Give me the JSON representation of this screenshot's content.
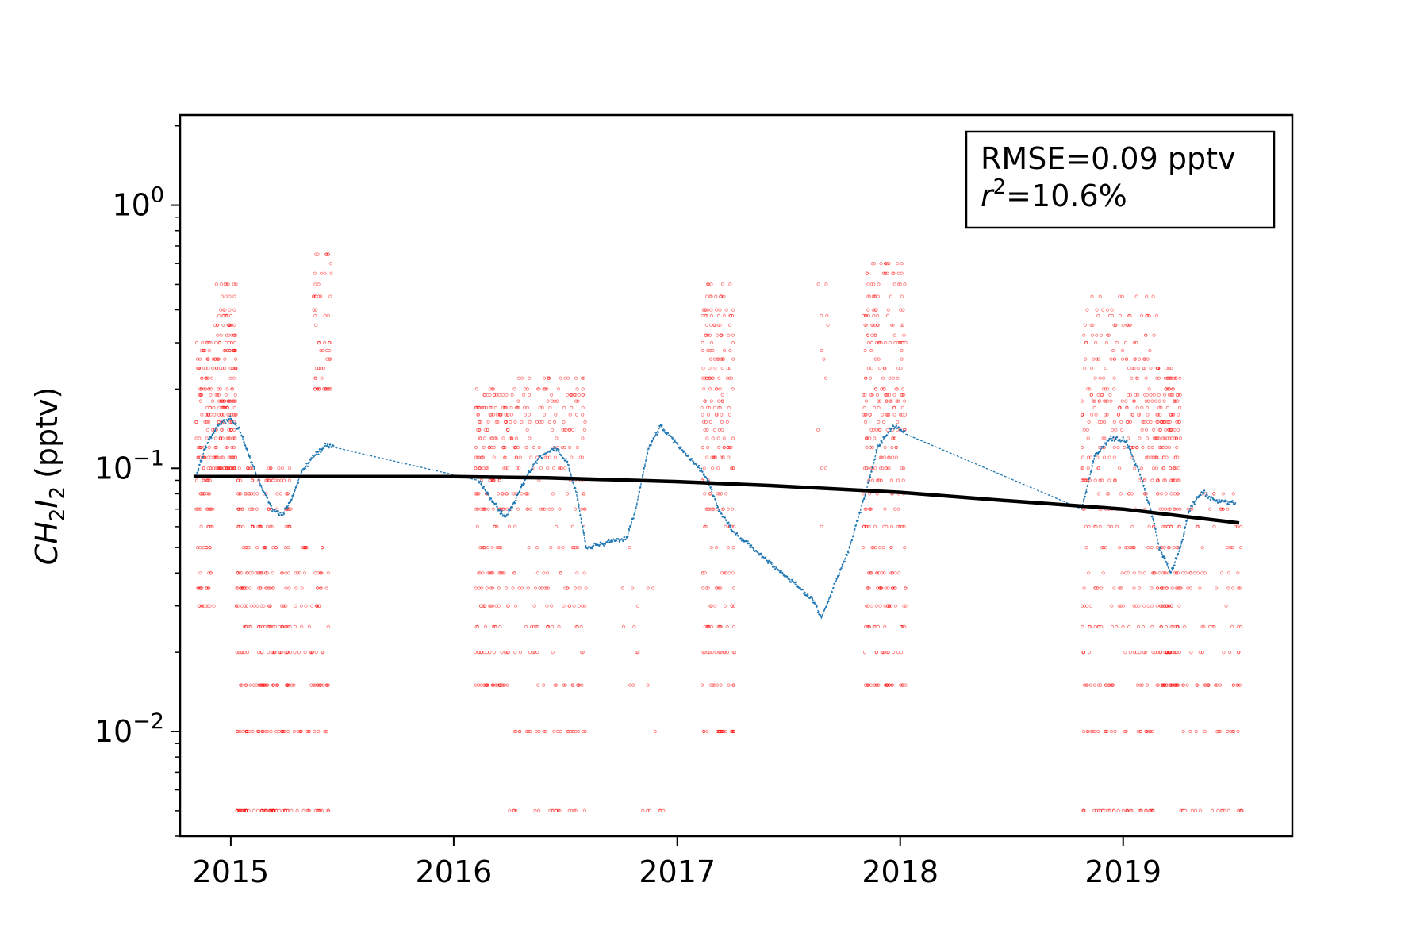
{
  "chart_data": {
    "type": "scatter",
    "title": "",
    "xlabel": "",
    "ylabel": "CH2I2 (pptv)",
    "ylabel_parts": {
      "c": "CH",
      "s1": "2",
      "i": "I",
      "s2": "2",
      "unit": "(pptv)"
    },
    "yscale": "log",
    "xlim": [
      "2014-10-10",
      "2019-10-05"
    ],
    "ylim": [
      0.004,
      2.2
    ],
    "x_ticks": [
      "2015",
      "2016",
      "2017",
      "2018",
      "2019"
    ],
    "y_ticks": [
      {
        "value": 1,
        "base": "10",
        "exp": "0"
      },
      {
        "value": 0.1,
        "base": "10",
        "exp": "−1"
      },
      {
        "value": 0.01,
        "base": "10",
        "exp": "−2"
      }
    ],
    "grid": false,
    "legend": "none",
    "annotation": {
      "line1": "RMSE=0.09 pptv",
      "line2_r": "r",
      "line2_exp": "2",
      "line2_rest": "=10.6%",
      "placement": "top-right"
    },
    "colors": {
      "observed": "#ff0000",
      "model": "#1f77b4",
      "trend": "#000000"
    },
    "series": [
      {
        "kind": "observed-points",
        "clusters": [
          {
            "x0": "2014-11-05",
            "x1": "2014-12-05",
            "ymin": 0.03,
            "ymax": 0.3,
            "n": 150
          },
          {
            "x0": "2014-12-05",
            "x1": "2015-01-10",
            "ymin": 0.1,
            "ymax": 0.5,
            "n": 200
          },
          {
            "x0": "2015-01-10",
            "x1": "2015-04-10",
            "ymin": 0.005,
            "ymax": 0.1,
            "n": 320
          },
          {
            "x0": "2015-04-10",
            "x1": "2015-06-10",
            "ymin": 0.005,
            "ymax": 0.06,
            "n": 90
          },
          {
            "x0": "2015-05-15",
            "x1": "2015-06-15",
            "ymin": 0.2,
            "ymax": 0.65,
            "n": 60
          },
          {
            "x0": "2016-02-05",
            "x1": "2016-03-31",
            "ymin": 0.015,
            "ymax": 0.2,
            "n": 220
          },
          {
            "x0": "2016-04-01",
            "x1": "2016-08-05",
            "ymin": 0.005,
            "ymax": 0.22,
            "n": 280
          },
          {
            "x0": "2016-09-20",
            "x1": "2016-12-10",
            "ymin": 0.005,
            "ymax": 0.05,
            "n": 20
          },
          {
            "x0": "2017-02-10",
            "x1": "2017-04-05",
            "ymin": 0.01,
            "ymax": 0.5,
            "n": 260
          },
          {
            "x0": "2017-08-15",
            "x1": "2017-09-10",
            "ymin": 0.06,
            "ymax": 0.55,
            "n": 12
          },
          {
            "x0": "2017-11-01",
            "x1": "2018-01-10",
            "ymin": 0.015,
            "ymax": 0.6,
            "n": 340
          },
          {
            "x0": "2018-10-25",
            "x1": "2019-02-25",
            "ymin": 0.005,
            "ymax": 0.45,
            "n": 420
          },
          {
            "x0": "2019-02-25",
            "x1": "2019-04-05",
            "ymin": 0.015,
            "ymax": 0.25,
            "n": 240
          },
          {
            "x0": "2019-04-05",
            "x1": "2019-07-15",
            "ymin": 0.005,
            "ymax": 0.08,
            "n": 110
          }
        ]
      },
      {
        "kind": "model-line",
        "points": [
          [
            "2014-11-05",
            0.092
          ],
          [
            "2014-11-20",
            0.12
          ],
          [
            "2014-12-10",
            0.145
          ],
          [
            "2014-12-31",
            0.155
          ],
          [
            "2015-01-15",
            0.14
          ],
          [
            "2015-02-01",
            0.11
          ],
          [
            "2015-02-20",
            0.085
          ],
          [
            "2015-03-10",
            0.07
          ],
          [
            "2015-03-25",
            0.066
          ],
          [
            "2015-04-10",
            0.075
          ],
          [
            "2015-04-25",
            0.095
          ],
          [
            "2015-05-15",
            0.11
          ],
          [
            "2015-06-05",
            0.122
          ],
          [
            "2015-06-20",
            0.12
          ],
          [
            "2016-02-10",
            0.09
          ],
          [
            "2016-02-25",
            0.08
          ],
          [
            "2016-03-10",
            0.072
          ],
          [
            "2016-03-25",
            0.065
          ],
          [
            "2016-04-10",
            0.075
          ],
          [
            "2016-05-01",
            0.095
          ],
          [
            "2016-05-20",
            0.11
          ],
          [
            "2016-06-15",
            0.12
          ],
          [
            "2016-07-05",
            0.105
          ],
          [
            "2016-07-20",
            0.08
          ],
          [
            "2016-08-05",
            0.05
          ],
          [
            "2016-10-10",
            0.054
          ],
          [
            "2016-10-25",
            0.07
          ],
          [
            "2016-11-15",
            0.12
          ],
          [
            "2016-12-05",
            0.145
          ],
          [
            "2017-02-15",
            0.095
          ],
          [
            "2017-03-10",
            0.07
          ],
          [
            "2017-04-01",
            0.058
          ],
          [
            "2017-08-10",
            0.032
          ],
          [
            "2017-08-25",
            0.027
          ],
          [
            "2017-10-10",
            0.05
          ],
          [
            "2017-11-05",
            0.08
          ],
          [
            "2017-11-25",
            0.12
          ],
          [
            "2017-12-20",
            0.145
          ],
          [
            "2018-01-10",
            0.135
          ],
          [
            "2018-10-25",
            0.07
          ],
          [
            "2018-11-15",
            0.11
          ],
          [
            "2018-12-10",
            0.13
          ],
          [
            "2019-01-05",
            0.128
          ],
          [
            "2019-01-25",
            0.1
          ],
          [
            "2019-02-15",
            0.07
          ],
          [
            "2019-03-01",
            0.05
          ],
          [
            "2019-03-20",
            0.04
          ],
          [
            "2019-04-05",
            0.05
          ],
          [
            "2019-04-20",
            0.07
          ],
          [
            "2019-05-10",
            0.082
          ],
          [
            "2019-06-01",
            0.075
          ],
          [
            "2019-07-05",
            0.074
          ]
        ]
      },
      {
        "kind": "trend-line",
        "points": [
          [
            "2014-11-01",
            0.093
          ],
          [
            "2015-06-01",
            0.093
          ],
          [
            "2016-01-01",
            0.093
          ],
          [
            "2016-06-01",
            0.092
          ],
          [
            "2017-01-01",
            0.089
          ],
          [
            "2017-06-01",
            0.086
          ],
          [
            "2018-01-01",
            0.081
          ],
          [
            "2018-06-01",
            0.076
          ],
          [
            "2019-01-01",
            0.07
          ],
          [
            "2019-07-10",
            0.062
          ]
        ]
      }
    ]
  }
}
